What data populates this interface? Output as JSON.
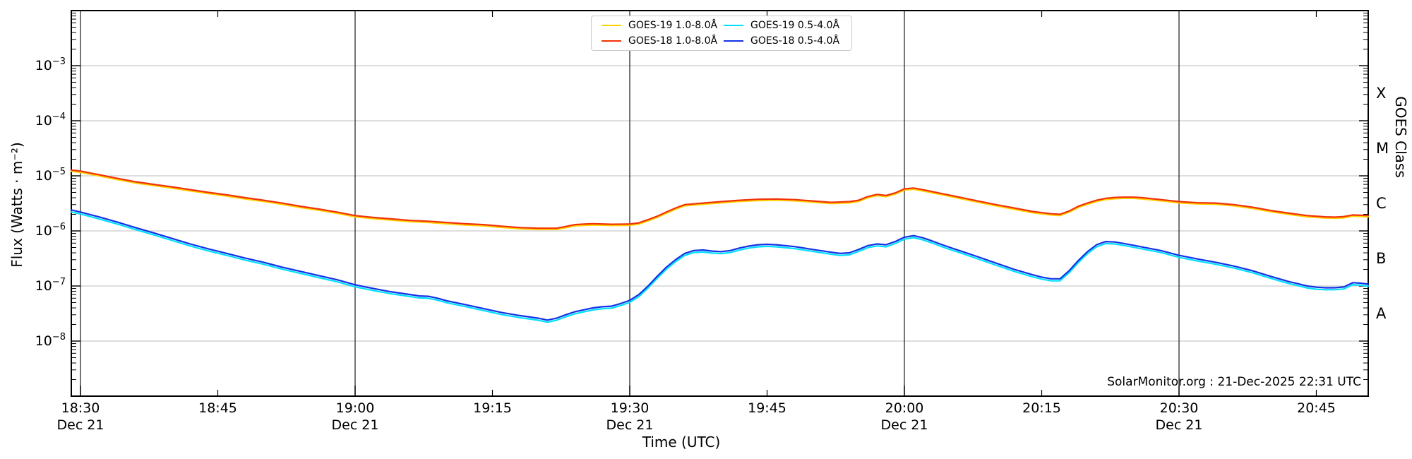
{
  "footer": {
    "watermark": "SolarMonitor.org : 21-Dec-2025 22:31 UTC"
  },
  "axes": {
    "x_label": "Time (UTC)",
    "y_label": "Flux (Watts · m⁻²)",
    "right_label": "GOES Class"
  },
  "chart_data": {
    "type": "line",
    "title": "",
    "xlabel": "Time (UTC)",
    "ylabel": "Flux (Watts · m⁻²)",
    "x_axis": {
      "start": "18:29 Dec 21",
      "end": "20:51 Dec 21",
      "minutes_from_1830_range": [
        -1,
        140.7
      ],
      "major_ticks": [
        {
          "t": 0,
          "label": "18:30",
          "sub": "Dec 21"
        },
        {
          "t": 30,
          "label": "19:00",
          "sub": "Dec 21"
        },
        {
          "t": 60,
          "label": "19:30",
          "sub": "Dec 21"
        },
        {
          "t": 90,
          "label": "20:00",
          "sub": "Dec 21"
        },
        {
          "t": 120,
          "label": "20:30",
          "sub": "Dec 21"
        }
      ],
      "minor_ticks": [
        {
          "t": 15,
          "label": "18:45"
        },
        {
          "t": 45,
          "label": "19:15"
        },
        {
          "t": 75,
          "label": "19:45"
        },
        {
          "t": 105,
          "label": "20:15"
        },
        {
          "t": 135,
          "label": "20:45"
        }
      ],
      "grid_on_major": true
    },
    "y_axis": {
      "scale": "log",
      "ylim": [
        1e-09,
        0.01
      ],
      "ticks": [
        {
          "exp": -3,
          "mantissa": "10",
          "exponent": "−3"
        },
        {
          "exp": -4,
          "mantissa": "10",
          "exponent": "−4"
        },
        {
          "exp": -5,
          "mantissa": "10",
          "exponent": "−5"
        },
        {
          "exp": -6,
          "mantissa": "10",
          "exponent": "−6"
        },
        {
          "exp": -7,
          "mantissa": "10",
          "exponent": "−7"
        },
        {
          "exp": -8,
          "mantissa": "10",
          "exponent": "−8"
        }
      ],
      "grid_on_decades": true
    },
    "right_axis": {
      "label": "GOES Class",
      "classes": [
        {
          "label": "X",
          "exp_center": -3.5
        },
        {
          "label": "M",
          "exp_center": -4.5
        },
        {
          "label": "C",
          "exp_center": -5.5
        },
        {
          "label": "B",
          "exp_center": -6.5
        },
        {
          "label": "A",
          "exp_center": -7.5
        }
      ]
    },
    "legend": {
      "position": "top-center",
      "columns": 2,
      "order": "column-major"
    },
    "colors": {
      "goes19_long": "#FFD300",
      "goes18_long": "#F23208",
      "goes19_short": "#00E0FF",
      "goes18_short": "#1232E6",
      "h_grid": "#c9c9c9",
      "v_grid": "#2b2b2b"
    },
    "series": [
      {
        "name": "GOES-19 1.0-8.0Å",
        "color": "#FFD300",
        "note": "runs just below GOES-18 1.0-8.0Å, mostly hidden behind it",
        "ratio_of": "GOES-18 1.0-8.0Å",
        "ratio": 0.95
      },
      {
        "name": "GOES-18 1.0-8.0Å",
        "color": "#F23208",
        "points_t_min_vs_wm2": [
          [
            -1,
            1.27e-05
          ],
          [
            0,
            1.22e-05
          ],
          [
            2,
            1.05e-05
          ],
          [
            4,
            9e-06
          ],
          [
            6,
            7.8e-06
          ],
          [
            8,
            7e-06
          ],
          [
            10,
            6.3e-06
          ],
          [
            12,
            5.6e-06
          ],
          [
            14,
            5e-06
          ],
          [
            16,
            4.5e-06
          ],
          [
            18,
            4e-06
          ],
          [
            20,
            3.6e-06
          ],
          [
            22,
            3.2e-06
          ],
          [
            24,
            2.8e-06
          ],
          [
            26,
            2.5e-06
          ],
          [
            28,
            2.2e-06
          ],
          [
            30,
            1.9e-06
          ],
          [
            32,
            1.75e-06
          ],
          [
            34,
            1.65e-06
          ],
          [
            36,
            1.55e-06
          ],
          [
            38,
            1.5e-06
          ],
          [
            40,
            1.42e-06
          ],
          [
            42,
            1.35e-06
          ],
          [
            44,
            1.3e-06
          ],
          [
            46,
            1.22e-06
          ],
          [
            48,
            1.15e-06
          ],
          [
            50,
            1.12e-06
          ],
          [
            52,
            1.12e-06
          ],
          [
            53,
            1.2e-06
          ],
          [
            54,
            1.3e-06
          ],
          [
            55,
            1.33e-06
          ],
          [
            56,
            1.35e-06
          ],
          [
            58,
            1.32e-06
          ],
          [
            60,
            1.33e-06
          ],
          [
            61,
            1.4e-06
          ],
          [
            62,
            1.6e-06
          ],
          [
            63,
            1.85e-06
          ],
          [
            64,
            2.2e-06
          ],
          [
            65,
            2.6e-06
          ],
          [
            66,
            3e-06
          ],
          [
            67,
            3.1e-06
          ],
          [
            68,
            3.2e-06
          ],
          [
            70,
            3.4e-06
          ],
          [
            72,
            3.6e-06
          ],
          [
            74,
            3.75e-06
          ],
          [
            76,
            3.8e-06
          ],
          [
            78,
            3.7e-06
          ],
          [
            80,
            3.5e-06
          ],
          [
            82,
            3.3e-06
          ],
          [
            84,
            3.4e-06
          ],
          [
            85,
            3.6e-06
          ],
          [
            86,
            4.2e-06
          ],
          [
            87,
            4.6e-06
          ],
          [
            88,
            4.4e-06
          ],
          [
            89,
            4.9e-06
          ],
          [
            90,
            5.8e-06
          ],
          [
            91,
            6e-06
          ],
          [
            92,
            5.6e-06
          ],
          [
            94,
            4.8e-06
          ],
          [
            96,
            4.1e-06
          ],
          [
            98,
            3.5e-06
          ],
          [
            100,
            3e-06
          ],
          [
            102,
            2.6e-06
          ],
          [
            104,
            2.25e-06
          ],
          [
            106,
            2.05e-06
          ],
          [
            107,
            2e-06
          ],
          [
            108,
            2.3e-06
          ],
          [
            109,
            2.8e-06
          ],
          [
            110,
            3.2e-06
          ],
          [
            111,
            3.6e-06
          ],
          [
            112,
            3.9e-06
          ],
          [
            113,
            4.05e-06
          ],
          [
            114,
            4.1e-06
          ],
          [
            115,
            4.1e-06
          ],
          [
            116,
            4e-06
          ],
          [
            118,
            3.7e-06
          ],
          [
            120,
            3.4e-06
          ],
          [
            122,
            3.25e-06
          ],
          [
            124,
            3.2e-06
          ],
          [
            126,
            3e-06
          ],
          [
            128,
            2.7e-06
          ],
          [
            130,
            2.35e-06
          ],
          [
            132,
            2.1e-06
          ],
          [
            134,
            1.9e-06
          ],
          [
            136,
            1.8e-06
          ],
          [
            137,
            1.78e-06
          ],
          [
            138,
            1.82e-06
          ],
          [
            139,
            1.95e-06
          ],
          [
            140.7,
            1.9e-06
          ]
        ]
      },
      {
        "name": "GOES-19 0.5-4.0Å",
        "color": "#00E0FF",
        "note": "runs just below GOES-18 0.5-4.0Å, visible in the dips near 19:20, 20:05 and 20:45",
        "ratio_of": "GOES-18 0.5-4.0Å",
        "ratio": 0.92
      },
      {
        "name": "GOES-18 0.5-4.0Å",
        "color": "#1232E6",
        "points_t_min_vs_wm2": [
          [
            -1,
            2.4e-06
          ],
          [
            0,
            2.2e-06
          ],
          [
            2,
            1.8e-06
          ],
          [
            4,
            1.45e-06
          ],
          [
            6,
            1.15e-06
          ],
          [
            8,
            9.2e-07
          ],
          [
            10,
            7.3e-07
          ],
          [
            12,
            5.8e-07
          ],
          [
            14,
            4.7e-07
          ],
          [
            16,
            3.9e-07
          ],
          [
            18,
            3.2e-07
          ],
          [
            20,
            2.7e-07
          ],
          [
            22,
            2.2e-07
          ],
          [
            24,
            1.85e-07
          ],
          [
            26,
            1.55e-07
          ],
          [
            28,
            1.3e-07
          ],
          [
            30,
            1.05e-07
          ],
          [
            32,
            9e-08
          ],
          [
            34,
            7.8e-08
          ],
          [
            36,
            7e-08
          ],
          [
            37,
            6.6e-08
          ],
          [
            38,
            6.5e-08
          ],
          [
            39,
            6e-08
          ],
          [
            40,
            5.4e-08
          ],
          [
            42,
            4.6e-08
          ],
          [
            44,
            3.9e-08
          ],
          [
            46,
            3.3e-08
          ],
          [
            48,
            2.9e-08
          ],
          [
            50,
            2.6e-08
          ],
          [
            51,
            2.4e-08
          ],
          [
            52,
            2.6e-08
          ],
          [
            53,
            3e-08
          ],
          [
            54,
            3.4e-08
          ],
          [
            55,
            3.7e-08
          ],
          [
            56,
            4e-08
          ],
          [
            57,
            4.2e-08
          ],
          [
            58,
            4.3e-08
          ],
          [
            59,
            4.8e-08
          ],
          [
            60,
            5.5e-08
          ],
          [
            61,
            7e-08
          ],
          [
            62,
            1e-07
          ],
          [
            63,
            1.5e-07
          ],
          [
            64,
            2.2e-07
          ],
          [
            65,
            3e-07
          ],
          [
            66,
            3.9e-07
          ],
          [
            67,
            4.4e-07
          ],
          [
            68,
            4.5e-07
          ],
          [
            69,
            4.3e-07
          ],
          [
            70,
            4.2e-07
          ],
          [
            71,
            4.4e-07
          ],
          [
            72,
            4.9e-07
          ],
          [
            73,
            5.3e-07
          ],
          [
            74,
            5.6e-07
          ],
          [
            75,
            5.7e-07
          ],
          [
            76,
            5.6e-07
          ],
          [
            78,
            5.2e-07
          ],
          [
            80,
            4.6e-07
          ],
          [
            82,
            4.1e-07
          ],
          [
            83,
            3.9e-07
          ],
          [
            84,
            4e-07
          ],
          [
            85,
            4.6e-07
          ],
          [
            86,
            5.4e-07
          ],
          [
            87,
            5.8e-07
          ],
          [
            88,
            5.6e-07
          ],
          [
            89,
            6.4e-07
          ],
          [
            90,
            7.7e-07
          ],
          [
            91,
            8.2e-07
          ],
          [
            92,
            7.5e-07
          ],
          [
            93,
            6.6e-07
          ],
          [
            94,
            5.7e-07
          ],
          [
            95,
            5e-07
          ],
          [
            96,
            4.4e-07
          ],
          [
            98,
            3.4e-07
          ],
          [
            100,
            2.6e-07
          ],
          [
            102,
            2e-07
          ],
          [
            104,
            1.6e-07
          ],
          [
            105,
            1.45e-07
          ],
          [
            106,
            1.35e-07
          ],
          [
            107,
            1.35e-07
          ],
          [
            108,
            1.9e-07
          ],
          [
            109,
            2.9e-07
          ],
          [
            110,
            4.2e-07
          ],
          [
            111,
            5.6e-07
          ],
          [
            112,
            6.4e-07
          ],
          [
            113,
            6.3e-07
          ],
          [
            114,
            5.9e-07
          ],
          [
            115,
            5.5e-07
          ],
          [
            116,
            5.1e-07
          ],
          [
            118,
            4.4e-07
          ],
          [
            120,
            3.6e-07
          ],
          [
            122,
            3.1e-07
          ],
          [
            124,
            2.7e-07
          ],
          [
            126,
            2.3e-07
          ],
          [
            128,
            1.9e-07
          ],
          [
            130,
            1.5e-07
          ],
          [
            132,
            1.2e-07
          ],
          [
            133,
            1.1e-07
          ],
          [
            134,
            1e-07
          ],
          [
            135,
            9.5e-08
          ],
          [
            136,
            9.3e-08
          ],
          [
            137,
            9.3e-08
          ],
          [
            138,
            9.6e-08
          ],
          [
            139,
            1.15e-07
          ],
          [
            140,
            1.12e-07
          ],
          [
            140.7,
            1.08e-07
          ]
        ]
      }
    ]
  }
}
